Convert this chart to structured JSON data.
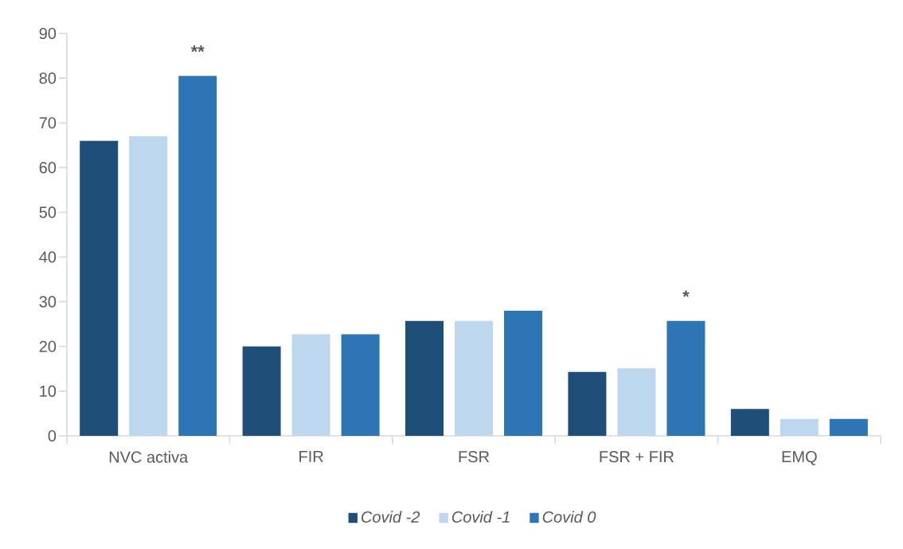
{
  "chart_data": {
    "type": "bar",
    "categories": [
      "NVC activa",
      "FIR",
      "FSR",
      "FSR + FIR",
      "EMQ"
    ],
    "series": [
      {
        "name": "Covid -2",
        "color": "#1f4e79",
        "values": [
          66,
          20,
          25.7,
          14.3,
          6
        ]
      },
      {
        "name": "Covid -1",
        "color": "#bdd7ee",
        "values": [
          67,
          22.7,
          25.7,
          15.1,
          3.8
        ]
      },
      {
        "name": "Covid  0",
        "color": "#2e75b6",
        "values": [
          80.5,
          22.7,
          28,
          25.7,
          3.8
        ]
      }
    ],
    "ylim": [
      0,
      90
    ],
    "yticks": [
      0,
      10,
      20,
      30,
      40,
      50,
      60,
      70,
      80,
      90
    ],
    "grid": false,
    "legend": "bottom",
    "annotations": [
      "**",
      "*"
    ]
  }
}
